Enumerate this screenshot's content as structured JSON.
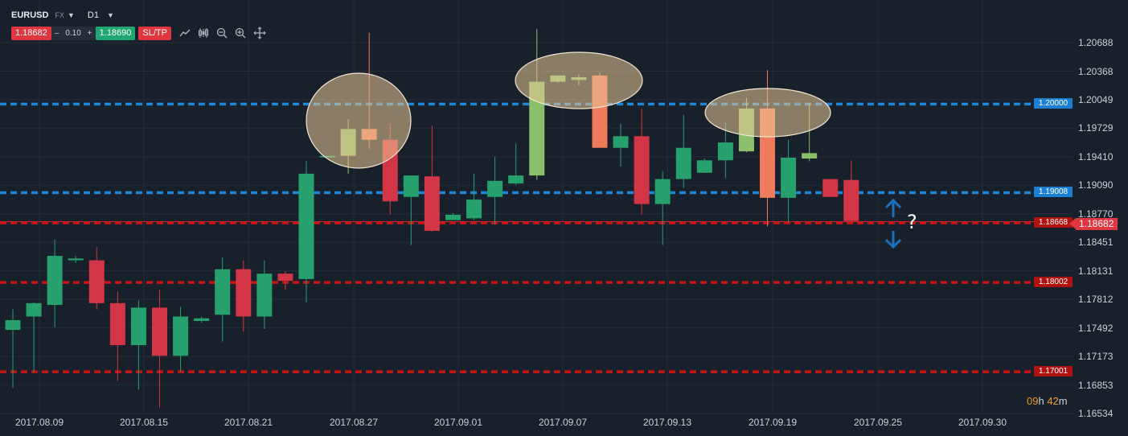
{
  "toolbar": {
    "symbol": "EURUSD",
    "market": "FX",
    "timeframe": "D1",
    "sell_price": "1.18682",
    "quantity": "0.10",
    "minus": "–",
    "plus": "+",
    "buy_price": "1.18690",
    "sltp_label": "SL/TP",
    "tools": [
      "line-chart-icon",
      "candles-icon",
      "zoom-out-icon",
      "zoom-in-icon",
      "crosshair-icon"
    ]
  },
  "timer": {
    "hours": "09",
    "h": "h",
    "minutes": "42",
    "m": "m"
  },
  "annotation": {
    "question_mark": "?"
  },
  "current_price": "1.18682",
  "levels": [
    {
      "value": 1.2,
      "label": "1.20000",
      "color": "#1d7fd1"
    },
    {
      "value": 1.19008,
      "label": "1.19008",
      "color": "#1d7fd1"
    },
    {
      "value": 1.18668,
      "label": "1.18668",
      "color": "#b01212"
    },
    {
      "value": 1.18002,
      "label": "1.18002",
      "color": "#b01212"
    },
    {
      "value": 1.17001,
      "label": "1.17001",
      "color": "#b01212"
    }
  ],
  "chart_data": {
    "type": "candlestick",
    "symbol": "EURUSD",
    "timeframe": "D1",
    "y_ticks": [
      "1.20688",
      "1.20368",
      "1.20049",
      "1.19729",
      "1.19410",
      "1.19090",
      "1.18770",
      "1.18451",
      "1.18131",
      "1.17812",
      "1.17492",
      "1.17173",
      "1.16853",
      "1.16534"
    ],
    "x_ticks": [
      "2017.08.09",
      "2017.08.15",
      "2017.08.21",
      "2017.08.27",
      "2017.09.01",
      "2017.09.07",
      "2017.09.13",
      "2017.09.19",
      "2017.09.25",
      "2017.09.30"
    ],
    "ylim": [
      1.16534,
      1.2092
    ],
    "colors": {
      "up": "#26a06d",
      "down": "#d23545",
      "up_highlight": "#8cbf6c",
      "down_highlight": "#ef7a5c"
    },
    "candles": [
      {
        "o": 1.1747,
        "h": 1.177,
        "l": 1.1682,
        "c": 1.1758
      },
      {
        "o": 1.1762,
        "h": 1.1778,
        "l": 1.17,
        "c": 1.1777
      },
      {
        "o": 1.1775,
        "h": 1.1848,
        "l": 1.175,
        "c": 1.183
      },
      {
        "o": 1.1825,
        "h": 1.183,
        "l": 1.1822,
        "c": 1.1827
      },
      {
        "o": 1.1825,
        "h": 1.184,
        "l": 1.177,
        "c": 1.1777
      },
      {
        "o": 1.1777,
        "h": 1.179,
        "l": 1.169,
        "c": 1.173
      },
      {
        "o": 1.173,
        "h": 1.178,
        "l": 1.168,
        "c": 1.1772
      },
      {
        "o": 1.1772,
        "h": 1.1792,
        "l": 1.166,
        "c": 1.1718
      },
      {
        "o": 1.1718,
        "h": 1.1773,
        "l": 1.17,
        "c": 1.1762
      },
      {
        "o": 1.1757,
        "h": 1.1762,
        "l": 1.1755,
        "c": 1.176
      },
      {
        "o": 1.1764,
        "h": 1.1828,
        "l": 1.1734,
        "c": 1.1815
      },
      {
        "o": 1.1815,
        "h": 1.1825,
        "l": 1.1745,
        "c": 1.1762
      },
      {
        "o": 1.1762,
        "h": 1.1825,
        "l": 1.1748,
        "c": 1.181
      },
      {
        "o": 1.181,
        "h": 1.1813,
        "l": 1.1792,
        "c": 1.1802
      },
      {
        "o": 1.1804,
        "h": 1.1936,
        "l": 1.1778,
        "c": 1.1922
      },
      {
        "o": 1.1942,
        "h": 1.1942,
        "l": 1.1942,
        "c": 1.1942
      },
      {
        "o": 1.1942,
        "h": 1.1983,
        "l": 1.1922,
        "c": 1.1972
      },
      {
        "o": 1.1972,
        "h": 1.208,
        "l": 1.195,
        "c": 1.196
      },
      {
        "o": 1.196,
        "h": 1.1978,
        "l": 1.1876,
        "c": 1.1891
      },
      {
        "o": 1.1896,
        "h": 1.192,
        "l": 1.1842,
        "c": 1.192
      },
      {
        "o": 1.1919,
        "h": 1.1976,
        "l": 1.1857,
        "c": 1.1858
      },
      {
        "o": 1.187,
        "h": 1.1878,
        "l": 1.187,
        "c": 1.1876
      },
      {
        "o": 1.1872,
        "h": 1.1922,
        "l": 1.187,
        "c": 1.1893
      },
      {
        "o": 1.1896,
        "h": 1.1941,
        "l": 1.1865,
        "c": 1.1914
      },
      {
        "o": 1.1911,
        "h": 1.1956,
        "l": 1.1909,
        "c": 1.192
      },
      {
        "o": 1.192,
        "h": 1.2084,
        "l": 1.1915,
        "c": 1.2025
      },
      {
        "o": 1.2025,
        "h": 1.2032,
        "l": 1.2024,
        "c": 1.2032
      },
      {
        "o": 1.2027,
        "h": 1.2033,
        "l": 1.2021,
        "c": 1.203
      },
      {
        "o": 1.2032,
        "h": 1.2036,
        "l": 1.1951,
        "c": 1.1951
      },
      {
        "o": 1.1951,
        "h": 1.1978,
        "l": 1.193,
        "c": 1.1964
      },
      {
        "o": 1.1964,
        "h": 1.1995,
        "l": 1.1876,
        "c": 1.1888
      },
      {
        "o": 1.1888,
        "h": 1.1925,
        "l": 1.1842,
        "c": 1.1916
      },
      {
        "o": 1.1916,
        "h": 1.1988,
        "l": 1.1906,
        "c": 1.1951
      },
      {
        "o": 1.1923,
        "h": 1.1939,
        "l": 1.1923,
        "c": 1.1937
      },
      {
        "o": 1.1937,
        "h": 1.198,
        "l": 1.1917,
        "c": 1.1957
      },
      {
        "o": 1.1947,
        "h": 1.2007,
        "l": 1.1946,
        "c": 1.1995
      },
      {
        "o": 1.1995,
        "h": 1.2038,
        "l": 1.1863,
        "c": 1.1895
      },
      {
        "o": 1.1895,
        "h": 1.196,
        "l": 1.1868,
        "c": 1.194
      },
      {
        "o": 1.1939,
        "h": 1.2,
        "l": 1.1936,
        "c": 1.1945
      },
      {
        "o": 1.1916,
        "h": 1.1916,
        "l": 1.1896,
        "c": 1.1896
      },
      {
        "o": 1.1915,
        "h": 1.1937,
        "l": 1.1869,
        "c": 1.1869
      }
    ]
  }
}
